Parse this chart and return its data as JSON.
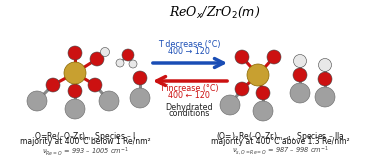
{
  "title": "ReO$_x$/ZrO$_2$($m$)",
  "title_fontsize": 9,
  "left_label_line1": "O=Re(–O–Zr)$_m$ ,Species – I",
  "left_label_line2": "majority at 400°C below 1 Re/nm²",
  "left_label_line3": "$\\nu_{Re=O}$ = 993 – 1005 cm$^{-1}$",
  "right_label_line1": "(O=)$_2$Re(–O–Zr)$_{m-1}$, Species – IIa",
  "right_label_line2": "majority at 400°C above 1.3 Re/nm²",
  "right_label_line3": "$\\nu_{s,O=Re=O}$ = 987 – 998 cm$^{-1}$",
  "arrow_top_text1": "T decrease (°C)",
  "arrow_top_text2": "400 → 120",
  "arrow_bot_text1": "T increase (°C)",
  "arrow_bot_text2": "400 ← 120",
  "arrow_bot_text3": "Dehydrated",
  "arrow_bot_text4": "conditions",
  "arrow_top_color": "#1A4DB5",
  "arrow_bot_color": "#CC1111",
  "background_color": "#ffffff",
  "gold_color": "#C8A030",
  "red_color": "#CC1111",
  "gray_color": "#A0A0A0",
  "white_ball_color": "#E8E8E8",
  "bond_color": "#CC1111",
  "zr_bond_color": "#888888"
}
